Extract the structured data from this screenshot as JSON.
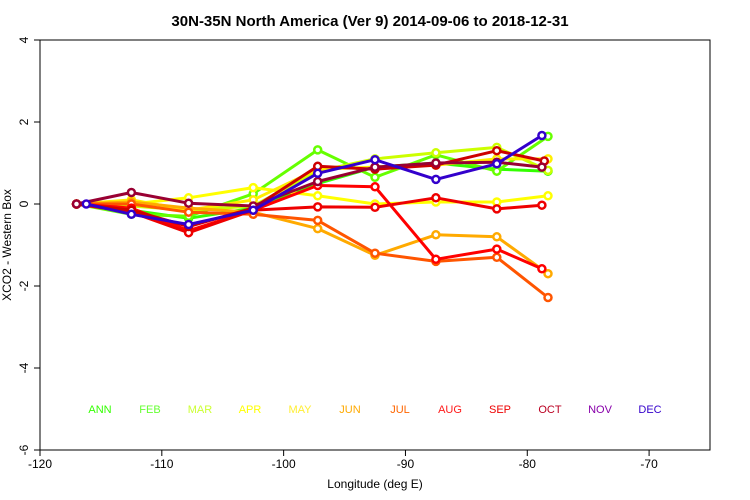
{
  "chart_data": {
    "type": "line",
    "title": "30N-35N North America (Ver 9)   2014-09-06 to 2018-12-31",
    "xlabel": "Longitude (deg E)",
    "ylabel": "XCO2 - Western Box",
    "xlim": [
      -120,
      -65
    ],
    "ylim": [
      -6,
      4
    ],
    "xticks": [
      -120,
      -110,
      -100,
      -90,
      -80,
      -70
    ],
    "yticks": [
      -6,
      -4,
      -2,
      0,
      2,
      4
    ],
    "grid": false,
    "legend_position": "bottom",
    "series": [
      {
        "name": "ANN",
        "color": "#33ff00",
        "x": [
          -117.0,
          -112.5,
          -107.8,
          -102.5,
          -97.2,
          -92.5,
          -87.5,
          -82.5,
          -78.3
        ],
        "y": [
          0.0,
          -0.15,
          -0.35,
          -0.1,
          0.5,
          0.9,
          1.0,
          0.85,
          0.8
        ]
      },
      {
        "name": "FEB",
        "color": "#66ff00",
        "x": [
          -117.0,
          -112.5,
          -107.8,
          -102.5,
          -97.2,
          -92.5,
          -87.5,
          -82.5,
          -78.3
        ],
        "y": [
          0.0,
          -0.25,
          -0.3,
          0.25,
          1.32,
          0.65,
          1.2,
          0.8,
          1.65
        ]
      },
      {
        "name": "MAR",
        "color": "#ccff00",
        "x": [
          -117.0,
          -112.5,
          -107.8,
          -102.5,
          -97.2,
          -92.5,
          -87.5,
          -82.5,
          -78.3
        ],
        "y": [
          0.0,
          -0.05,
          -0.15,
          -0.05,
          0.8,
          1.1,
          1.25,
          1.38,
          0.82
        ]
      },
      {
        "name": "APR",
        "color": "#ffff00",
        "x": [
          -117.0,
          -112.5,
          -107.8,
          -102.5,
          -97.2,
          -92.5,
          -87.5,
          -82.5,
          -78.3
        ],
        "y": [
          0.0,
          0.0,
          0.15,
          0.4,
          0.2,
          0.0,
          0.05,
          0.05,
          0.2
        ]
      },
      {
        "name": "MAY",
        "color": "#ffee00",
        "x": [
          -117.0,
          -112.5,
          -107.8,
          -102.5,
          -97.2,
          -92.5,
          -87.5,
          -82.5,
          -78.3
        ],
        "y": [
          0.0,
          0.1,
          -0.15,
          0.1,
          0.85,
          0.9,
          0.95,
          1.1,
          1.1
        ]
      },
      {
        "name": "JUN",
        "color": "#ffaa00",
        "x": [
          -117.0,
          -112.5,
          -107.8,
          -102.5,
          -97.2,
          -92.5,
          -87.5,
          -82.5,
          -78.3
        ],
        "y": [
          0.0,
          0.05,
          -0.1,
          -0.2,
          -0.6,
          -1.25,
          -0.75,
          -0.8,
          -1.7
        ]
      },
      {
        "name": "JUL",
        "color": "#ff5500",
        "x": [
          -117.0,
          -112.5,
          -107.8,
          -102.5,
          -97.2,
          -92.5,
          -87.5,
          -82.5,
          -78.3
        ],
        "y": [
          0.0,
          0.0,
          -0.2,
          -0.25,
          -0.4,
          -1.2,
          -1.4,
          -1.3,
          -2.28
        ]
      },
      {
        "name": "AUG",
        "color": "#ff0000",
        "x": [
          -117.0,
          -112.5,
          -107.8,
          -102.5,
          -97.2,
          -92.5,
          -87.5,
          -82.5,
          -78.8
        ],
        "y": [
          0.0,
          -0.1,
          -0.65,
          -0.15,
          0.45,
          0.42,
          -1.35,
          -1.1,
          -1.58
        ]
      },
      {
        "name": "SEP",
        "color": "#ee0000",
        "x": [
          -117.0,
          -112.5,
          -107.8,
          -102.5,
          -97.2,
          -92.5,
          -87.5,
          -82.5,
          -78.8
        ],
        "y": [
          0.0,
          -0.2,
          -0.7,
          -0.15,
          -0.07,
          -0.08,
          0.15,
          -0.12,
          -0.03
        ]
      },
      {
        "name": "OCT",
        "color": "#cc0000",
        "x": [
          -117.0,
          -112.5,
          -107.8,
          -102.5,
          -97.2,
          -92.5,
          -87.5,
          -82.5,
          -78.6
        ],
        "y": [
          0.0,
          -0.15,
          -0.55,
          -0.1,
          0.92,
          0.85,
          0.95,
          1.3,
          1.05
        ]
      },
      {
        "name": "NOV",
        "color": "#990033",
        "x": [
          -117.0,
          -112.5,
          -107.8,
          -102.5,
          -97.2,
          -92.5,
          -87.5,
          -82.5,
          -78.8
        ],
        "y": [
          0.0,
          0.28,
          0.02,
          -0.05,
          0.55,
          0.9,
          1.0,
          1.02,
          0.9
        ]
      },
      {
        "name": "DEC",
        "color": "#3300cc",
        "x": [
          -116.2,
          -112.5,
          -107.8,
          -102.5,
          -97.2,
          -92.5,
          -87.5,
          -82.5,
          -78.8
        ],
        "y": [
          0.0,
          -0.25,
          -0.5,
          -0.15,
          0.75,
          1.08,
          0.6,
          0.98,
          1.67
        ]
      }
    ],
    "legend_colors": {
      "ANN": "#33ff00",
      "FEB": "#66ff33",
      "MAR": "#ccff33",
      "APR": "#ffff00",
      "MAY": "#ffee33",
      "JUN": "#ffaa00",
      "JUL": "#ff6600",
      "AUG": "#ff1a1a",
      "SEP": "#ee0000",
      "OCT": "#bb0022",
      "NOV": "#8800aa",
      "DEC": "#3300cc"
    }
  }
}
